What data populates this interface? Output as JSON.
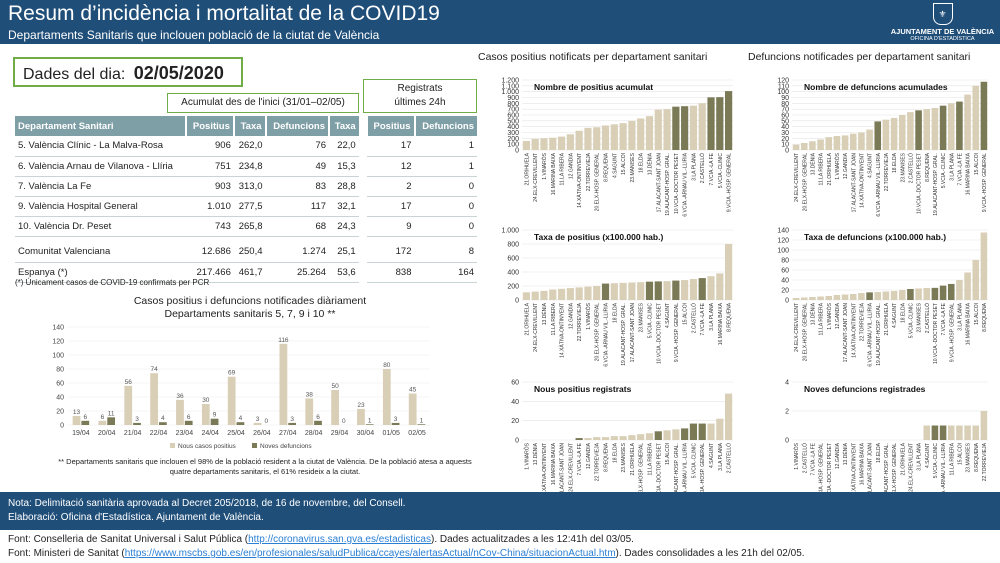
{
  "header": {
    "title": "Resum d’incidència i mortalitat de la COVID19",
    "subtitle": "Departaments Sanitaris que inclouen població de la ciutat de València",
    "logo_line1": "AJUNTAMENT DE VALÈNCIA",
    "logo_line2": "OFICINA D'ESTADÍSTICA"
  },
  "date_label": "Dades del dia:",
  "date_value": "02/05/2020",
  "acum_label": "Acumulat des de l'inici (31/01–02/05)",
  "reg24_label1": "Registrats",
  "reg24_label2": "últimes 24h",
  "table": {
    "headers": [
      "Departament Sanitari",
      "Positius",
      "Taxa",
      "Defuncions",
      "Taxa",
      "Positius",
      "Defuncions"
    ],
    "rows": [
      [
        "5. València Clínic - La Malva-Rosa",
        "906",
        "262,0",
        "76",
        "22,0",
        "17",
        "1"
      ],
      [
        "6. València Arnau de Vilanova - Llíria",
        "751",
        "234,8",
        "49",
        "15,3",
        "12",
        "1"
      ],
      [
        "7. València La Fe",
        "903",
        "313,0",
        "83",
        "28,8",
        "2",
        "0"
      ],
      [
        "9. València Hospital General",
        "1.010",
        "277,5",
        "117",
        "32,1",
        "17",
        "0"
      ],
      [
        "10. València Dr. Peset",
        "743",
        "265,8",
        "68",
        "24,3",
        "9",
        "0"
      ]
    ],
    "totals": [
      [
        "Comunitat Valenciana",
        "12.686",
        "250,4",
        "1.274",
        "25,1",
        "172",
        "8"
      ],
      [
        "Espanya (*)",
        "217.466",
        "461,7",
        "25.264",
        "53,6",
        "838",
        "164"
      ]
    ]
  },
  "footnote1": "(*) Únicament casos de COVID-19 confirmats per PCR",
  "daily": {
    "title1": "Casos positius i defuncions notificades diàriament",
    "title2": "Departaments sanitaris 5, 7, 9 i 10 **",
    "legend_cases": "Nous casos positius",
    "legend_deaths": "Noves defuncions",
    "note": "** Departaments sanitaris que inclouen el 98% de la població resident a la ciutat de València. De la població atesa a aquests quatre departaments sanitaris, el 61% resideix a la ciutat."
  },
  "right_titles": {
    "left": "Casos positius notificats per departament sanitari",
    "right": "Defuncions notificades per departament sanitari"
  },
  "notebox": {
    "line1": "Nota: Delimitació sanitària aprovada al Decret 205/2018, de 16 de novembre, del Consell.",
    "line2": "Elaboració: Oficina d'Estadística. Ajuntament de València."
  },
  "sources": {
    "l1a": "Font: Conselleria de Sanitat Universal i Salut Pública (",
    "l1link": "http://coronavirus.san.gva.es/estadisticas",
    "l1b": ").   Dades actualitzades a les 12:41h del 03/05.",
    "l2a": "Font: Ministeri de Sanitat (",
    "l2link": "https://www.mscbs.gob.es/en/profesionales/saludPublica/ccayes/alertasActual/nCov-China/situacionActual.htm",
    "l2b": ").   Dades consolidades a les 21h del 02/05."
  },
  "colors": {
    "header": "#1f4e79",
    "bar": "#d9cfb6",
    "highlight": "#7b7a56",
    "deaths": "#7b7a56",
    "cases": "#d9cfb6",
    "border": "#70ad47"
  },
  "chart_data": [
    {
      "type": "bar",
      "title": "",
      "categories": [
        "19/04",
        "20/04",
        "21/04",
        "22/04",
        "23/04",
        "24/04",
        "25/04",
        "26/04",
        "27/04",
        "28/04",
        "29/04",
        "30/04",
        "01/05",
        "02/05"
      ],
      "series": [
        {
          "name": "Nous casos positius",
          "values": [
            13,
            6,
            56,
            74,
            36,
            30,
            69,
            3,
            116,
            38,
            50,
            23,
            80,
            45
          ]
        },
        {
          "name": "Noves defuncions",
          "values": [
            6,
            11,
            3,
            4,
            6,
            9,
            4,
            0,
            3,
            6,
            0,
            1,
            3,
            1
          ]
        }
      ],
      "ylim": [
        0,
        140
      ],
      "yticks": [
        0,
        20,
        40,
        60,
        80,
        100,
        120,
        140
      ]
    },
    {
      "type": "bar",
      "title": "Nombre de positius acumulat",
      "categories": [
        "21.ORIHUELA",
        "24.ELX-CREVILLENT",
        "1.VINARÒS",
        "16.MARINA BAIXA",
        "11.LA RIBERA",
        "12.GANDIA",
        "14.XÀTIVA-ONTINYENT",
        "22.TORREVIEJA",
        "20.ELX-HOSP. GENERAL",
        "8.REQUENA",
        "4.SAGUNT",
        "15.ALCOI",
        "23.MANISES",
        "18.ELDA",
        "13.DÉNIA",
        "17.ALACANT-SANT JOAN",
        "19.ALACANT-HOSP. GRAL.",
        "10.VCIA.-DOCTOR PESET",
        "6.VCIA.-ARNAU VIL.-LLIRIA",
        "3.LA PLANA",
        "2.CASTELLÓ",
        "7.VCIA.-LA FE",
        "5.VCIA.-CLINIC",
        "9.VCIA.-HOSP. GENERAL"
      ],
      "values": [
        155,
        190,
        200,
        210,
        230,
        270,
        330,
        380,
        390,
        420,
        440,
        460,
        500,
        540,
        580,
        690,
        700,
        743,
        751,
        760,
        800,
        903,
        906,
        1010
      ],
      "highlight": [
        17,
        18,
        21,
        22,
        23
      ],
      "ylim": [
        0,
        1200
      ],
      "yticks": [
        0,
        100,
        200,
        300,
        400,
        500,
        600,
        700,
        800,
        900,
        1000,
        1100,
        1200
      ],
      "ytick_labels": [
        "0",
        "100",
        "200",
        "300",
        "400",
        "500",
        "600",
        "700",
        "800",
        "900",
        "1.000",
        "1.100",
        "1.200"
      ]
    },
    {
      "type": "bar",
      "title": "Nombre de defuncions acumulades",
      "categories": [
        "24.ELX-CREVILLENT",
        "20.ELX-HOSP. GENERAL",
        "13.DÉNIA",
        "11.LA RIBERA",
        "21.ORIHUELA",
        "1.VINARÒS",
        "12.GANDIA",
        "17.ALACANT-SANT JOAN",
        "14.XÀTIVA-ONTINYENT",
        "4.SAGUNT",
        "6.VCIA.-ARNAU VIL.-LLIRIA",
        "22.TORREVIEJA",
        "18.ELDA",
        "23.MANISES",
        "2.CASTELLÓ",
        "10.VCIA.-DOCTOR PESET",
        "8.REQUENA",
        "19.ALACANT-HOSP. GRAL.",
        "5.VCIA.-CLINIC",
        "3.LA PLANA",
        "7.VCIA.-LA FE",
        "16.MARINA BAIXA",
        "15.ALCOI",
        "9.VCIA.-HOSP. GENERAL"
      ],
      "values": [
        9,
        12,
        15,
        18,
        22,
        24,
        25,
        28,
        30,
        35,
        49,
        52,
        55,
        60,
        65,
        68,
        70,
        72,
        76,
        80,
        83,
        95,
        110,
        117
      ],
      "highlight": [
        10,
        15,
        18,
        20,
        23
      ],
      "ylim": [
        0,
        120
      ],
      "yticks": [
        0,
        10,
        20,
        30,
        40,
        50,
        60,
        70,
        80,
        90,
        100,
        110,
        120
      ]
    },
    {
      "type": "bar",
      "title": "Taxa de positius (x100.000 hab.)",
      "categories": [
        "21.ORIHUELA",
        "24.ELX-CREVILLENT",
        "13.DÉNIA",
        "11.LA RIBERA",
        "14.XÀTIVA-ONTINYENT",
        "12.GANDIA",
        "22.TORREVIEJA",
        "1.VINARÒS",
        "20.ELX-HOSP. GENERAL",
        "6.VCIA.-ARNAU VIL.-LLIRIA",
        "18.ELDA",
        "19.ALACANT-HOSP. GRAL.",
        "17.ALACANT-SANT JOAN",
        "23.MANISES",
        "5.VCIA.-CLINIC",
        "10.VCIA.-DOCTOR PESET",
        "4.SAGUNT",
        "9.VCIA.-HOSP. GENERAL",
        "15.ALCOI",
        "2.CASTELLÓ",
        "7.VCIA.-LA FE",
        "3.LA PLANA",
        "16.MARINA BAIXA",
        "8.REQUENA"
      ],
      "values": [
        110,
        120,
        130,
        150,
        160,
        170,
        180,
        190,
        200,
        234.8,
        240,
        245,
        250,
        255,
        262,
        265.8,
        270,
        277.5,
        285,
        300,
        313,
        340,
        380,
        800
      ],
      "highlight": [
        9,
        14,
        15,
        17,
        20
      ],
      "ylim": [
        0,
        1000
      ],
      "yticks": [
        0,
        200,
        400,
        600,
        800,
        1000
      ],
      "ytick_labels": [
        "0",
        "200",
        "400",
        "600",
        "800",
        "1.000"
      ]
    },
    {
      "type": "bar",
      "title": "Taxa de defuncions (x100.000 hab.)",
      "categories": [
        "24.ELX-CREVILLENT",
        "20.ELX-HOSP. GENERAL",
        "13.DÉNIA",
        "11.LA RIBERA",
        "1.VINARÒS",
        "12.GANDIA",
        "17.ALACANT-SANT JOAN",
        "14.XÀTIVA-ONTINYENT",
        "22.TORREVIEJA",
        "6.VCIA.-ARNAU VIL.-LLIRIA",
        "19.ALACANT-HOSP. GRAL.",
        "21.ORIHUELA",
        "4.SAGUNT",
        "18.ELDA",
        "5.VCIA.-CLINIC",
        "23.MANISES",
        "2.CASTELLÓ",
        "10.VCIA.-DOCTOR PESET",
        "7.VCIA.-LA FE",
        "9.VCIA.-HOSP. GENERAL",
        "3.LA PLANA",
        "16.MARINA BAIXA",
        "15.ALCOI",
        "8.REQUENA"
      ],
      "values": [
        4,
        5,
        6,
        7,
        8,
        10,
        11,
        12,
        14,
        15.3,
        16,
        17,
        18,
        20,
        22,
        23,
        24,
        24.3,
        28.8,
        32.1,
        40,
        55,
        80,
        135
      ],
      "highlight": [
        9,
        14,
        17,
        18,
        19
      ],
      "ylim": [
        0,
        140
      ],
      "yticks": [
        0,
        20,
        40,
        60,
        80,
        100,
        120,
        140
      ]
    },
    {
      "type": "bar",
      "title": "Nous positius registrats",
      "categories": [
        "1.VINARÒS",
        "13.DÉNIA",
        "14.XÀTIVA-ONTINYENT",
        "16.MARINA BAIXA",
        "17.ALACANT-SANT JOAN",
        "24.ELX-CREVILLENT",
        "7.VCIA.-LA FE",
        "12.GANDIA",
        "22.TORREVIEJA",
        "8.REQUENA",
        "18.ELDA",
        "23.MANISES",
        "21.ORIHUELA",
        "20.ELX-HOSP. GENERAL",
        "11.LA RIBERA",
        "10.VCIA.-DOCTOR PESET",
        "15.ALCOI",
        "19.ALACANT-HOSP. GRAL.",
        "6.VCIA.-ARNAU VIL.-LLIRIA",
        "5.VCIA.-CLINIC",
        "9.VCIA.-HOSP. GENERAL",
        "4.SAGUNT",
        "3.LA PLANA",
        "2.CASTELLÓ"
      ],
      "values": [
        0,
        0,
        0,
        0,
        0,
        0,
        2,
        2,
        3,
        3,
        4,
        4,
        5,
        6,
        7,
        9,
        10,
        11,
        12,
        17,
        17,
        17,
        22,
        48
      ],
      "highlight": [
        6,
        15,
        18,
        19,
        20
      ],
      "ylim": [
        0,
        60
      ],
      "yticks": [
        0,
        20,
        40,
        60
      ]
    },
    {
      "type": "bar",
      "title": "Noves defuncions registrades",
      "categories": [
        "1.VINARÒS",
        "2.CASTELLÓ",
        "7.VCIA.-LA FE",
        "9.VCIA.-HOSP. GENERAL",
        "10.VCIA.-DOCTOR PESET",
        "12.GANDIA",
        "13.DÉNIA",
        "14.XÀTIVA-ONTINYENT",
        "16.MARINA BAIXA",
        "17.ALACANT-SANT JOAN",
        "18.ELDA",
        "19.ALACANT-HOSP. GRAL.",
        "20.ELX-HOSP. GENERAL",
        "21.ORIHUELA",
        "24.ELX-CREVILLENT",
        "3.LA PLANA",
        "4.SAGUNT",
        "5.VCIA.-CLINIC",
        "6.VCIA.-ARNAU VIL.-LLIRIA",
        "11.LA RIBERA",
        "15.ALCOI",
        "23.MANISES",
        "8.REQUENA",
        "22.TORREVIEJA"
      ],
      "values": [
        0,
        0,
        0,
        0,
        0,
        0,
        0,
        0,
        0,
        0,
        0,
        0,
        0,
        0,
        0,
        0,
        1,
        1,
        1,
        1,
        1,
        1,
        1,
        2
      ],
      "highlight": [
        2,
        3,
        4,
        17,
        18
      ],
      "ylim": [
        0,
        4
      ],
      "yticks": [
        0,
        2,
        4
      ]
    }
  ]
}
